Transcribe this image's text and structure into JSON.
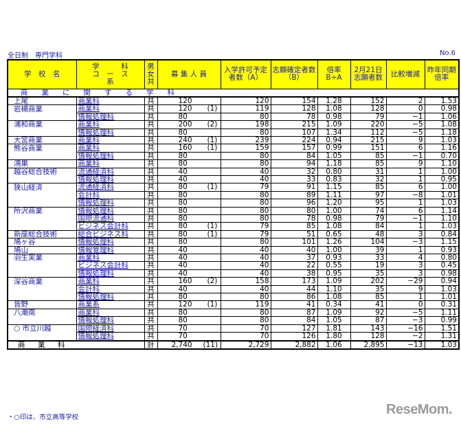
{
  "title": "全日制　専門学科",
  "page_no": "No.6",
  "headers": {
    "school": "学　校　名",
    "course_1": "学　　　科",
    "course_2": "コ　ー　ス",
    "course_3": "系",
    "gender": "男女共",
    "quota": "募 集 人 員",
    "admit": "入学許可予定者数（A）",
    "applicants": "志願確定者数（B）",
    "ratio": "倍率 B÷A",
    "feb21": "2月21日志願者数",
    "diff": "比較増減",
    "prev": "昨年同期倍率"
  },
  "section": "商業に関する学科",
  "rows": [
    {
      "school": "上尾",
      "course": "商業科",
      "gender": "共",
      "quota": "120",
      "note": "",
      "A": "120",
      "B": "154",
      "ratio": "1.28",
      "feb21": "152",
      "diff": "2",
      "prev": "1.53"
    },
    {
      "school": "岩槻商業",
      "course": "商業科",
      "gender": "共",
      "quota": "120",
      "note": "(1)",
      "A": "119",
      "B": "128",
      "ratio": "1.08",
      "feb21": "128",
      "diff": "0",
      "prev": "0.98"
    },
    {
      "school": "",
      "course": "情報処理科",
      "gender": "共",
      "quota": "80",
      "note": "",
      "A": "80",
      "B": "78",
      "ratio": "0.98",
      "feb21": "79",
      "diff": "−1",
      "prev": "1.06"
    },
    {
      "school": "浦和商業",
      "course": "商業科",
      "gender": "共",
      "quota": "200",
      "note": "(2)",
      "A": "198",
      "B": "215",
      "ratio": "1.09",
      "feb21": "220",
      "diff": "−5",
      "prev": "1.08"
    },
    {
      "school": "",
      "course": "情報処理科",
      "gender": "共",
      "quota": "80",
      "note": "",
      "A": "80",
      "B": "107",
      "ratio": "1.34",
      "feb21": "112",
      "diff": "−5",
      "prev": "1.18"
    },
    {
      "school": "大宮商業",
      "course": "商業科",
      "gender": "共",
      "quota": "240",
      "note": "(1)",
      "A": "239",
      "B": "224",
      "ratio": "0.94",
      "feb21": "215",
      "diff": "9",
      "prev": "1.03"
    },
    {
      "school": "熊谷商業",
      "course": "商業科",
      "gender": "共",
      "quota": "160",
      "note": "(1)",
      "A": "159",
      "B": "157",
      "ratio": "0.99",
      "feb21": "151",
      "diff": "6",
      "prev": "1.16"
    },
    {
      "school": "",
      "course": "情報処理科",
      "gender": "共",
      "quota": "80",
      "note": "",
      "A": "80",
      "B": "84",
      "ratio": "1.05",
      "feb21": "85",
      "diff": "−1",
      "prev": "0.70"
    },
    {
      "school": "鴻巣",
      "course": "商業科",
      "gender": "共",
      "quota": "80",
      "note": "",
      "A": "80",
      "B": "94",
      "ratio": "1.18",
      "feb21": "85",
      "diff": "9",
      "prev": "1.10"
    },
    {
      "school": "越谷総合技術",
      "course": "流通経済科",
      "gender": "共",
      "quota": "40",
      "note": "",
      "A": "40",
      "B": "32",
      "ratio": "0.80",
      "feb21": "31",
      "diff": "1",
      "prev": "1.00"
    },
    {
      "school": "",
      "course": "情報処理科",
      "gender": "共",
      "quota": "40",
      "note": "",
      "A": "40",
      "B": "33",
      "ratio": "0.83",
      "feb21": "32",
      "diff": "1",
      "prev": "0.95"
    },
    {
      "school": "狭山経済",
      "course": "流通経済科",
      "gender": "共",
      "quota": "80",
      "note": "(1)",
      "A": "79",
      "B": "91",
      "ratio": "1.15",
      "feb21": "85",
      "diff": "6",
      "prev": "1.00"
    },
    {
      "school": "",
      "course": "会計科",
      "gender": "共",
      "quota": "80",
      "note": "",
      "A": "80",
      "B": "89",
      "ratio": "1.11",
      "feb21": "97",
      "diff": "−8",
      "prev": "1.01"
    },
    {
      "school": "",
      "course": "情報処理科",
      "gender": "共",
      "quota": "80",
      "note": "",
      "A": "80",
      "B": "96",
      "ratio": "1.20",
      "feb21": "95",
      "diff": "1",
      "prev": "1.03"
    },
    {
      "school": "所沢商業",
      "course": "情報処理科",
      "gender": "共",
      "quota": "80",
      "note": "",
      "A": "80",
      "B": "80",
      "ratio": "1.00",
      "feb21": "74",
      "diff": "6",
      "prev": "1.14"
    },
    {
      "school": "",
      "course": "国際流通科",
      "gender": "共",
      "quota": "80",
      "note": "",
      "A": "80",
      "B": "78",
      "ratio": "0.98",
      "feb21": "79",
      "diff": "−1",
      "prev": "1.10"
    },
    {
      "school": "",
      "course": "ビジネス会計科",
      "gender": "共",
      "quota": "80",
      "note": "(1)",
      "A": "79",
      "B": "85",
      "ratio": "1.08",
      "feb21": "84",
      "diff": "1",
      "prev": "1.03"
    },
    {
      "school": "新座総合技術",
      "course": "総合ビジネス科",
      "gender": "共",
      "quota": "80",
      "note": "(1)",
      "A": "79",
      "B": "51",
      "ratio": "0.65",
      "feb21": "48",
      "diff": "3",
      "prev": "0.84"
    },
    {
      "school": "鳩ヶ谷",
      "course": "情報処理科",
      "gender": "共",
      "quota": "80",
      "note": "",
      "A": "80",
      "B": "101",
      "ratio": "1.26",
      "feb21": "104",
      "diff": "−3",
      "prev": "1.15"
    },
    {
      "school": "鳩山",
      "course": "情報管理科",
      "gender": "共",
      "quota": "40",
      "note": "",
      "A": "40",
      "B": "40",
      "ratio": "1.00",
      "feb21": "39",
      "diff": "1",
      "prev": "0.93"
    },
    {
      "school": "羽生実業",
      "course": "商業科",
      "gender": "共",
      "quota": "40",
      "note": "",
      "A": "40",
      "B": "37",
      "ratio": "0.93",
      "feb21": "33",
      "diff": "4",
      "prev": "0.80"
    },
    {
      "school": "",
      "course": "ビジネス会計科",
      "gender": "共",
      "quota": "40",
      "note": "",
      "A": "40",
      "B": "22",
      "ratio": "0.55",
      "feb21": "19",
      "diff": "3",
      "prev": "0.45"
    },
    {
      "school": "",
      "course": "情報処理科",
      "gender": "共",
      "quota": "40",
      "note": "",
      "A": "40",
      "B": "38",
      "ratio": "0.95",
      "feb21": "35",
      "diff": "3",
      "prev": "0.98"
    },
    {
      "school": "深谷商業",
      "course": "商業科",
      "gender": "共",
      "quota": "160",
      "note": "(2)",
      "A": "158",
      "B": "173",
      "ratio": "1.09",
      "feb21": "202",
      "diff": "−29",
      "prev": "0.94"
    },
    {
      "school": "",
      "course": "会計科",
      "gender": "共",
      "quota": "40",
      "note": "",
      "A": "40",
      "B": "44",
      "ratio": "1.10",
      "feb21": "35",
      "diff": "9",
      "prev": "1.03"
    },
    {
      "school": "",
      "course": "情報処理科",
      "gender": "共",
      "quota": "80",
      "note": "",
      "A": "80",
      "B": "86",
      "ratio": "1.08",
      "feb21": "85",
      "diff": "1",
      "prev": "1.01"
    },
    {
      "school": "皆野",
      "course": "商業系",
      "gender": "共",
      "quota": "120",
      "note": "(1)",
      "A": "119",
      "B": "41",
      "ratio": "0.34",
      "feb21": "41",
      "diff": "0",
      "prev": "0.31"
    },
    {
      "school": "八潮南",
      "course": "商業科",
      "gender": "共",
      "quota": "80",
      "note": "",
      "A": "80",
      "B": "87",
      "ratio": "1.09",
      "feb21": "92",
      "diff": "−5",
      "prev": "1.11"
    },
    {
      "school": "",
      "course": "情報処理科",
      "gender": "共",
      "quota": "80",
      "note": "",
      "A": "80",
      "B": "84",
      "ratio": "1.05",
      "feb21": "87",
      "diff": "−3",
      "prev": "0.99"
    },
    {
      "school": "○ 市立川越",
      "course": "国際経済科",
      "gender": "共",
      "quota": "70",
      "note": "",
      "A": "70",
      "B": "127",
      "ratio": "1.81",
      "feb21": "143",
      "diff": "−16",
      "prev": "1.51"
    },
    {
      "school": "",
      "course": "情報処理科",
      "gender": "共",
      "quota": "70",
      "note": "",
      "A": "70",
      "B": "126",
      "ratio": "1.80",
      "feb21": "128",
      "diff": "−2",
      "prev": "1.31"
    }
  ],
  "total": {
    "label": "商　業　科",
    "gender": "計",
    "quota": "2,740",
    "note": "(11)",
    "A": "2,729",
    "B": "2,882",
    "ratio": "1.06",
    "feb21": "2,895",
    "diff": "−13",
    "prev": "1.03"
  },
  "footnote": "・○印は、市立高等学校",
  "watermark": "ReseMom"
}
